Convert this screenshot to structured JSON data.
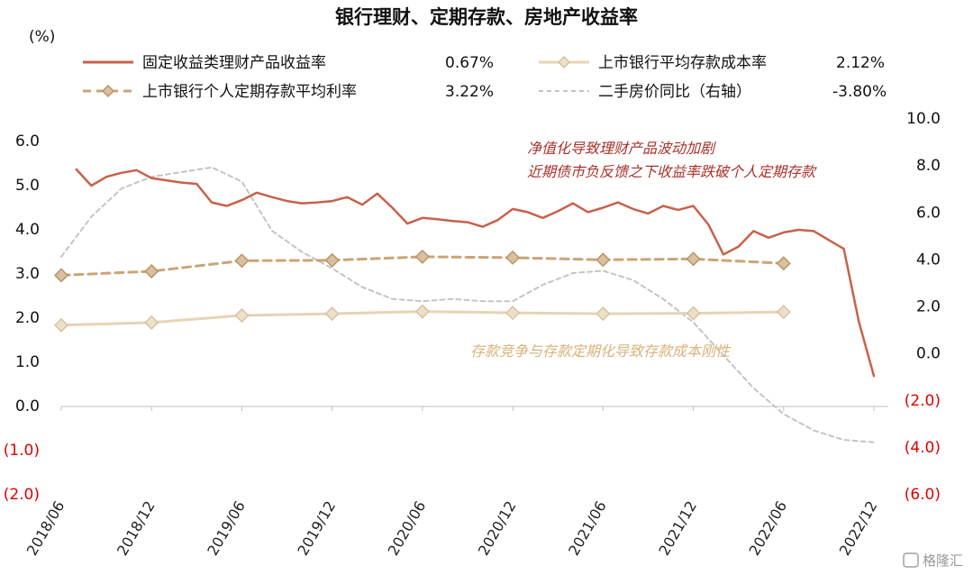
{
  "chart_data": {
    "type": "line",
    "title": "银行理财、定期存款、房地产收益率",
    "ylabel_left": "(%)",
    "ylim_left": [
      -2.0,
      6.0
    ],
    "ylim_right": [
      -6.0,
      10.0
    ],
    "yticks_left": [
      "6.0",
      "5.0",
      "4.0",
      "3.0",
      "2.0",
      "1.0",
      "0.0",
      "(1.0)",
      "(2.0)"
    ],
    "yticks_right": [
      "10.0",
      "8.0",
      "6.0",
      "4.0",
      "2.0",
      "0.0",
      "(2.0)",
      "(4.0)",
      "(6.0)"
    ],
    "x_ticks": [
      "2018/06",
      "2018/12",
      "2019/06",
      "2019/12",
      "2020/06",
      "2020/12",
      "2021/06",
      "2021/12",
      "2022/06",
      "2022/12"
    ],
    "series": [
      {
        "name": "固定收益类理财产品收益率",
        "latest_label": "0.67%",
        "color": "#c8614a",
        "axis": "left",
        "points": [
          [
            "2018/07",
            5.35
          ],
          [
            "2018/08",
            4.98
          ],
          [
            "2018/09",
            5.18
          ],
          [
            "2018/10",
            5.27
          ],
          [
            "2018/11",
            5.33
          ],
          [
            "2018/12",
            5.15
          ],
          [
            "2019/01",
            5.1
          ],
          [
            "2019/02",
            5.05
          ],
          [
            "2019/03",
            5.02
          ],
          [
            "2019/04",
            4.6
          ],
          [
            "2019/05",
            4.52
          ],
          [
            "2019/06",
            4.65
          ],
          [
            "2019/07",
            4.82
          ],
          [
            "2019/08",
            4.72
          ],
          [
            "2019/09",
            4.63
          ],
          [
            "2019/10",
            4.58
          ],
          [
            "2019/11",
            4.6
          ],
          [
            "2019/12",
            4.63
          ],
          [
            "2020/01",
            4.72
          ],
          [
            "2020/02",
            4.55
          ],
          [
            "2020/03",
            4.8
          ],
          [
            "2020/04",
            4.48
          ],
          [
            "2020/05",
            4.12
          ],
          [
            "2020/06",
            4.25
          ],
          [
            "2020/07",
            4.22
          ],
          [
            "2020/08",
            4.18
          ],
          [
            "2020/09",
            4.15
          ],
          [
            "2020/10",
            4.05
          ],
          [
            "2020/11",
            4.2
          ],
          [
            "2020/12",
            4.45
          ],
          [
            "2021/01",
            4.38
          ],
          [
            "2021/02",
            4.25
          ],
          [
            "2021/03",
            4.4
          ],
          [
            "2021/04",
            4.58
          ],
          [
            "2021/05",
            4.38
          ],
          [
            "2021/06",
            4.48
          ],
          [
            "2021/07",
            4.6
          ],
          [
            "2021/08",
            4.45
          ],
          [
            "2021/09",
            4.35
          ],
          [
            "2021/10",
            4.52
          ],
          [
            "2021/11",
            4.43
          ],
          [
            "2021/12",
            4.52
          ],
          [
            "2022/01",
            4.1
          ],
          [
            "2022/02",
            3.42
          ],
          [
            "2022/03",
            3.6
          ],
          [
            "2022/04",
            3.95
          ],
          [
            "2022/05",
            3.8
          ],
          [
            "2022/06",
            3.92
          ],
          [
            "2022/07",
            3.98
          ],
          [
            "2022/08",
            3.95
          ],
          [
            "2022/09",
            3.75
          ],
          [
            "2022/10",
            3.55
          ],
          [
            "2022/11",
            1.9
          ],
          [
            "2022/12",
            0.67
          ]
        ]
      },
      {
        "name": "上市银行平均存款成本率",
        "latest_label": "2.12%",
        "color": "#e8d3b6",
        "axis": "left",
        "points": [
          [
            "2018/06",
            1.82
          ],
          [
            "2018/12",
            1.88
          ],
          [
            "2019/06",
            2.04
          ],
          [
            "2019/12",
            2.08
          ],
          [
            "2020/06",
            2.13
          ],
          [
            "2020/12",
            2.1
          ],
          [
            "2021/06",
            2.08
          ],
          [
            "2021/12",
            2.09
          ],
          [
            "2022/06",
            2.12
          ]
        ]
      },
      {
        "name": "上市银行个人定期存款平均利率",
        "latest_label": "3.22%",
        "color": "#c9a576",
        "axis": "left",
        "points": [
          [
            "2018/06",
            2.95
          ],
          [
            "2018/12",
            3.04
          ],
          [
            "2019/06",
            3.28
          ],
          [
            "2019/12",
            3.29
          ],
          [
            "2020/06",
            3.37
          ],
          [
            "2020/12",
            3.35
          ],
          [
            "2021/06",
            3.3
          ],
          [
            "2021/12",
            3.32
          ],
          [
            "2022/06",
            3.22
          ]
        ]
      },
      {
        "name": "二手房价同比（右轴）",
        "latest_label": "-3.80%",
        "color": "#c4c4c4",
        "axis": "right",
        "points": [
          [
            "2018/06",
            4.1
          ],
          [
            "2018/08",
            5.8
          ],
          [
            "2018/10",
            7.0
          ],
          [
            "2018/12",
            7.5
          ],
          [
            "2019/02",
            7.7
          ],
          [
            "2019/04",
            7.9
          ],
          [
            "2019/06",
            7.3
          ],
          [
            "2019/08",
            5.2
          ],
          [
            "2019/10",
            4.3
          ],
          [
            "2019/12",
            3.6
          ],
          [
            "2020/02",
            2.8
          ],
          [
            "2020/04",
            2.3
          ],
          [
            "2020/06",
            2.2
          ],
          [
            "2020/08",
            2.3
          ],
          [
            "2020/10",
            2.2
          ],
          [
            "2020/12",
            2.2
          ],
          [
            "2021/02",
            2.9
          ],
          [
            "2021/04",
            3.4
          ],
          [
            "2021/06",
            3.5
          ],
          [
            "2021/08",
            3.1
          ],
          [
            "2021/10",
            2.3
          ],
          [
            "2021/12",
            1.3
          ],
          [
            "2022/02",
            -0.1
          ],
          [
            "2022/04",
            -1.5
          ],
          [
            "2022/06",
            -2.6
          ],
          [
            "2022/08",
            -3.3
          ],
          [
            "2022/10",
            -3.7
          ],
          [
            "2022/12",
            -3.8
          ]
        ]
      }
    ],
    "annotations": [
      "净值化导致理财产品波动加剧",
      "近期债市负反馈之下收益率跌破个人定期存款",
      "存款竞争与存款定期化导致存款成本刚性"
    ]
  },
  "watermark": "格隆汇"
}
